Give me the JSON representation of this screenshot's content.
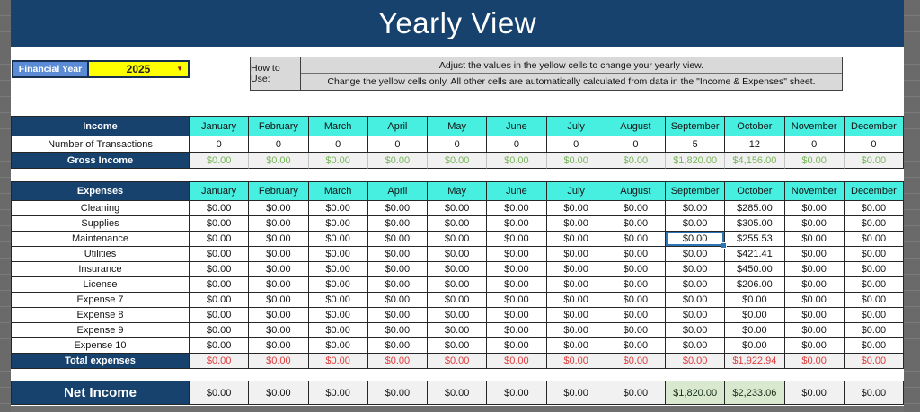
{
  "title": "Yearly View",
  "controls": {
    "financial_year_label": "Financial Year",
    "financial_year_value": "2025",
    "dropdown_arrow_icon": "▼"
  },
  "how_to_use": {
    "label": "How to Use:",
    "line1": "Adjust the values in the yellow cells to change your yearly view.",
    "line2": "Change the yellow cells only. All other cells are automatically calculated from data in the \"Income & Expenses\" sheet."
  },
  "months": [
    "January",
    "February",
    "March",
    "April",
    "May",
    "June",
    "July",
    "August",
    "September",
    "October",
    "November",
    "December"
  ],
  "income": {
    "header": "Income",
    "rows": [
      {
        "label": "Number of Transactions",
        "style": "plain",
        "values": [
          "0",
          "0",
          "0",
          "0",
          "0",
          "0",
          "0",
          "0",
          "5",
          "12",
          "0",
          "0"
        ]
      },
      {
        "label": "Gross Income",
        "style": "gross",
        "values": [
          "$0.00",
          "$0.00",
          "$0.00",
          "$0.00",
          "$0.00",
          "$0.00",
          "$0.00",
          "$0.00",
          "$1,820.00",
          "$4,156.00",
          "$0.00",
          "$0.00"
        ]
      }
    ]
  },
  "expenses": {
    "header": "Expenses",
    "rows": [
      {
        "label": "Cleaning",
        "values": [
          "$0.00",
          "$0.00",
          "$0.00",
          "$0.00",
          "$0.00",
          "$0.00",
          "$0.00",
          "$0.00",
          "$0.00",
          "$285.00",
          "$0.00",
          "$0.00"
        ]
      },
      {
        "label": "Supplies",
        "values": [
          "$0.00",
          "$0.00",
          "$0.00",
          "$0.00",
          "$0.00",
          "$0.00",
          "$0.00",
          "$0.00",
          "$0.00",
          "$305.00",
          "$0.00",
          "$0.00"
        ]
      },
      {
        "label": "Maintenance",
        "values": [
          "$0.00",
          "$0.00",
          "$0.00",
          "$0.00",
          "$0.00",
          "$0.00",
          "$0.00",
          "$0.00",
          "$0.00",
          "$255.53",
          "$0.00",
          "$0.00"
        ]
      },
      {
        "label": "Utilities",
        "values": [
          "$0.00",
          "$0.00",
          "$0.00",
          "$0.00",
          "$0.00",
          "$0.00",
          "$0.00",
          "$0.00",
          "$0.00",
          "$421.41",
          "$0.00",
          "$0.00"
        ]
      },
      {
        "label": "Insurance",
        "values": [
          "$0.00",
          "$0.00",
          "$0.00",
          "$0.00",
          "$0.00",
          "$0.00",
          "$0.00",
          "$0.00",
          "$0.00",
          "$450.00",
          "$0.00",
          "$0.00"
        ]
      },
      {
        "label": "License",
        "values": [
          "$0.00",
          "$0.00",
          "$0.00",
          "$0.00",
          "$0.00",
          "$0.00",
          "$0.00",
          "$0.00",
          "$0.00",
          "$206.00",
          "$0.00",
          "$0.00"
        ]
      },
      {
        "label": "Expense 7",
        "values": [
          "$0.00",
          "$0.00",
          "$0.00",
          "$0.00",
          "$0.00",
          "$0.00",
          "$0.00",
          "$0.00",
          "$0.00",
          "$0.00",
          "$0.00",
          "$0.00"
        ]
      },
      {
        "label": "Expense 8",
        "values": [
          "$0.00",
          "$0.00",
          "$0.00",
          "$0.00",
          "$0.00",
          "$0.00",
          "$0.00",
          "$0.00",
          "$0.00",
          "$0.00",
          "$0.00",
          "$0.00"
        ]
      },
      {
        "label": "Expense 9",
        "values": [
          "$0.00",
          "$0.00",
          "$0.00",
          "$0.00",
          "$0.00",
          "$0.00",
          "$0.00",
          "$0.00",
          "$0.00",
          "$0.00",
          "$0.00",
          "$0.00"
        ]
      },
      {
        "label": "Expense 10",
        "values": [
          "$0.00",
          "$0.00",
          "$0.00",
          "$0.00",
          "$0.00",
          "$0.00",
          "$0.00",
          "$0.00",
          "$0.00",
          "$0.00",
          "$0.00",
          "$0.00"
        ]
      }
    ],
    "total": {
      "label": "Total expenses",
      "values": [
        "$0.00",
        "$0.00",
        "$0.00",
        "$0.00",
        "$0.00",
        "$0.00",
        "$0.00",
        "$0.00",
        "$0.00",
        "$1,922.94",
        "$0.00",
        "$0.00"
      ]
    }
  },
  "net_income": {
    "label": "Net Income",
    "values": [
      "$0.00",
      "$0.00",
      "$0.00",
      "$0.00",
      "$0.00",
      "$0.00",
      "$0.00",
      "$0.00",
      "$1,820.00",
      "$2,233.06",
      "$0.00",
      "$0.00"
    ],
    "highlight_indexes": [
      8,
      9
    ]
  },
  "selection": {
    "row_label": "Maintenance",
    "month_index": 8
  },
  "colors": {
    "navy": "#17426E",
    "cyan": "#46EFE0",
    "fy_blue": "#5B8BD5",
    "fy_yellow": "#FFFF00",
    "green_text": "#77B55A",
    "red_text": "#E03C3C",
    "highlight_green": "#D8E9D0",
    "cell_gray": "#F1F1F1"
  }
}
